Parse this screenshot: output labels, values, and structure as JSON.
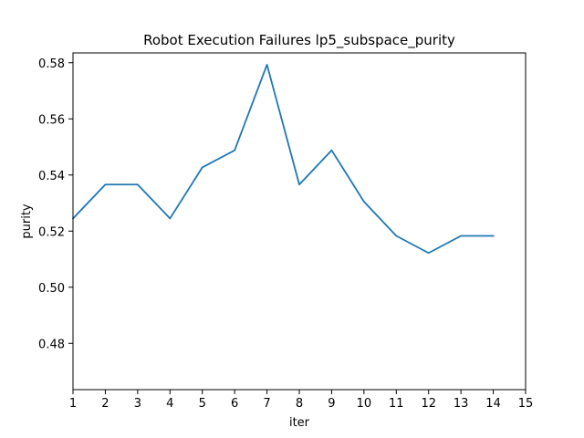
{
  "chart_data": {
    "type": "line",
    "title": "Robot Execution Failures lp5_subspace_purity",
    "xlabel": "iter",
    "ylabel": "purity",
    "xlim": [
      1,
      15
    ],
    "ylim": [
      0.4635,
      0.5835
    ],
    "xticks": [
      1,
      2,
      3,
      4,
      5,
      6,
      7,
      8,
      9,
      10,
      11,
      12,
      13,
      14,
      15
    ],
    "yticks": [
      0.48,
      0.5,
      0.52,
      0.54,
      0.56,
      0.58
    ],
    "ytick_labels": [
      "0.48",
      "0.50",
      "0.52",
      "0.54",
      "0.56",
      "0.58"
    ],
    "grid": false,
    "series": [
      {
        "color": "#1f77b4",
        "x": [
          1,
          2,
          3,
          4,
          5,
          6,
          7,
          8,
          9,
          10,
          11,
          12,
          13,
          14
        ],
        "y": [
          0.5245,
          0.5366,
          0.5366,
          0.5245,
          0.5427,
          0.5488,
          0.5793,
          0.5366,
          0.5488,
          0.5305,
          0.5183,
          0.5122,
          0.5183,
          0.5183
        ]
      }
    ]
  }
}
